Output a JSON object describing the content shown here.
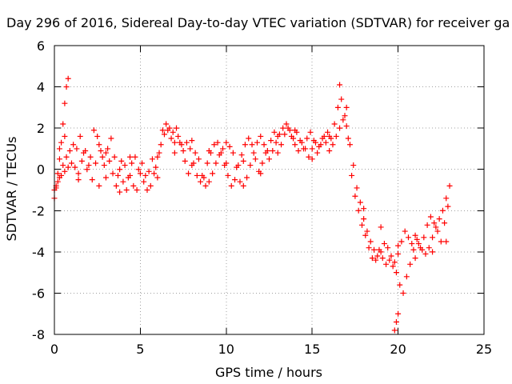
{
  "chart_data": {
    "type": "scatter",
    "title": "Day 296 of 2016, Sidereal Day-to-day VTEC variation (SDTVAR) for receiver ga",
    "xlabel": "GPS time / hours",
    "ylabel": "SDTVAR / TECUs",
    "xlim": [
      0,
      25
    ],
    "ylim": [
      -8,
      6
    ],
    "xticks": [
      "0",
      "5",
      "10",
      "15",
      "20",
      "25"
    ],
    "yticks": [
      "-8",
      "-6",
      "-4",
      "-2",
      "0",
      "2",
      "4",
      "6"
    ],
    "grid": true,
    "marker": "plus",
    "color": "#ff0000",
    "series": [
      {
        "points": [
          [
            0.0,
            -1.4
          ],
          [
            0.1,
            -0.8
          ],
          [
            0.2,
            -0.2
          ],
          [
            0.3,
            0.5
          ],
          [
            0.4,
            1.3
          ],
          [
            0.5,
            2.2
          ],
          [
            0.6,
            3.2
          ],
          [
            0.7,
            4.0
          ],
          [
            0.8,
            4.4
          ],
          [
            0.0,
            -1.0
          ],
          [
            0.2,
            -0.6
          ],
          [
            0.4,
            -0.3
          ],
          [
            0.6,
            -0.1
          ],
          [
            0.8,
            0.1
          ],
          [
            1.0,
            0.3
          ],
          [
            1.2,
            0.1
          ],
          [
            1.4,
            -0.2
          ],
          [
            1.6,
            0.4
          ],
          [
            1.8,
            0.9
          ],
          [
            2.0,
            0.2
          ],
          [
            2.2,
            -0.5
          ],
          [
            2.4,
            0.3
          ],
          [
            2.6,
            1.2
          ],
          [
            2.8,
            0.6
          ],
          [
            3.0,
            -0.4
          ],
          [
            3.2,
            0.4
          ],
          [
            3.4,
            -0.2
          ],
          [
            3.6,
            -0.8
          ],
          [
            3.8,
            0.0
          ],
          [
            4.0,
            -0.6
          ],
          [
            4.2,
            -1.0
          ],
          [
            4.4,
            -0.3
          ],
          [
            4.6,
            -0.8
          ],
          [
            4.8,
            -1.0
          ],
          [
            5.0,
            -0.2
          ],
          [
            5.2,
            -0.6
          ],
          [
            5.4,
            -1.0
          ],
          [
            5.6,
            -0.8
          ],
          [
            5.8,
            -0.2
          ],
          [
            6.0,
            0.6
          ],
          [
            6.2,
            1.2
          ],
          [
            6.4,
            1.7
          ],
          [
            6.6,
            1.9
          ],
          [
            6.8,
            1.5
          ],
          [
            7.0,
            1.3
          ],
          [
            7.2,
            1.6
          ],
          [
            7.4,
            1.2
          ],
          [
            7.6,
            0.4
          ],
          [
            7.8,
            -0.2
          ],
          [
            8.0,
            0.2
          ],
          [
            8.2,
            0.8
          ],
          [
            8.4,
            0.5
          ],
          [
            8.6,
            -0.3
          ],
          [
            8.8,
            -0.8
          ],
          [
            9.0,
            -0.6
          ],
          [
            9.2,
            -0.2
          ],
          [
            9.4,
            0.3
          ],
          [
            9.6,
            0.7
          ],
          [
            9.8,
            1.0
          ],
          [
            10.0,
            1.3
          ],
          [
            10.2,
            1.1
          ],
          [
            10.4,
            0.8
          ],
          [
            10.6,
            0.1
          ],
          [
            10.8,
            -0.6
          ],
          [
            11.0,
            -0.8
          ],
          [
            11.2,
            -0.4
          ],
          [
            11.4,
            0.2
          ],
          [
            11.6,
            0.8
          ],
          [
            11.8,
            1.3
          ],
          [
            12.0,
            1.6
          ],
          [
            12.2,
            1.2
          ],
          [
            12.4,
            0.9
          ],
          [
            12.6,
            1.4
          ],
          [
            12.8,
            1.8
          ],
          [
            13.0,
            1.6
          ],
          [
            13.2,
            1.2
          ],
          [
            13.4,
            1.7
          ],
          [
            13.6,
            2.0
          ],
          [
            13.8,
            1.6
          ],
          [
            14.0,
            1.2
          ],
          [
            14.2,
            0.9
          ],
          [
            14.4,
            1.3
          ],
          [
            14.6,
            1.0
          ],
          [
            14.8,
            0.6
          ],
          [
            15.0,
            1.0
          ],
          [
            15.2,
            1.3
          ],
          [
            15.4,
            1.1
          ],
          [
            15.6,
            1.5
          ],
          [
            15.8,
            1.3
          ],
          [
            16.0,
            0.9
          ],
          [
            16.2,
            1.2
          ],
          [
            16.4,
            1.6
          ],
          [
            16.6,
            2.0
          ],
          [
            16.8,
            2.4
          ],
          [
            17.0,
            2.1
          ],
          [
            17.2,
            1.2
          ],
          [
            17.4,
            0.2
          ],
          [
            17.6,
            -0.9
          ],
          [
            17.8,
            -1.6
          ],
          [
            18.0,
            -2.4
          ],
          [
            18.2,
            -3.0
          ],
          [
            18.4,
            -3.5
          ],
          [
            18.6,
            -3.9
          ],
          [
            18.8,
            -4.2
          ],
          [
            19.0,
            -4.0
          ],
          [
            19.2,
            -3.6
          ],
          [
            19.4,
            -3.8
          ],
          [
            19.6,
            -4.2
          ],
          [
            19.8,
            -4.5
          ],
          [
            20.0,
            -4.1
          ],
          [
            20.2,
            -3.5
          ],
          [
            20.4,
            -3.0
          ],
          [
            20.6,
            -3.3
          ],
          [
            20.8,
            -3.6
          ],
          [
            21.0,
            -3.2
          ],
          [
            21.2,
            -3.6
          ],
          [
            21.4,
            -3.9
          ],
          [
            21.6,
            -4.1
          ],
          [
            21.8,
            -3.8
          ],
          [
            22.0,
            -3.3
          ],
          [
            22.2,
            -2.8
          ],
          [
            22.4,
            -2.4
          ],
          [
            22.6,
            -2.0
          ],
          [
            22.8,
            -1.4
          ],
          [
            23.0,
            -0.8
          ],
          [
            0.1,
            -0.9
          ],
          [
            0.3,
            -0.4
          ],
          [
            0.5,
            0.2
          ],
          [
            0.7,
            0.6
          ],
          [
            0.9,
            0.9
          ],
          [
            1.1,
            1.2
          ],
          [
            1.3,
            1.0
          ],
          [
            1.5,
            1.6
          ],
          [
            1.7,
            0.8
          ],
          [
            1.9,
            0.0
          ],
          [
            2.1,
            0.6
          ],
          [
            2.3,
            1.9
          ],
          [
            2.5,
            1.6
          ],
          [
            2.7,
            0.9
          ],
          [
            2.9,
            0.2
          ],
          [
            3.1,
            1.0
          ],
          [
            3.3,
            1.5
          ],
          [
            3.5,
            0.6
          ],
          [
            3.7,
            -0.3
          ],
          [
            3.9,
            0.4
          ],
          [
            4.1,
            0.2
          ],
          [
            4.3,
            -0.4
          ],
          [
            4.5,
            0.3
          ],
          [
            4.7,
            0.6
          ],
          [
            4.9,
            0.0
          ],
          [
            5.1,
            0.3
          ],
          [
            5.3,
            -0.3
          ],
          [
            5.5,
            -0.1
          ],
          [
            5.7,
            0.5
          ],
          [
            5.9,
            0.1
          ],
          [
            6.1,
            0.8
          ],
          [
            6.3,
            1.9
          ],
          [
            6.5,
            2.2
          ],
          [
            6.7,
            2.0
          ],
          [
            6.9,
            1.8
          ],
          [
            7.1,
            2.0
          ],
          [
            7.3,
            1.3
          ],
          [
            7.5,
            0.9
          ],
          [
            7.7,
            1.3
          ],
          [
            7.9,
            1.0
          ],
          [
            8.1,
            0.3
          ],
          [
            8.3,
            -0.3
          ],
          [
            8.5,
            -0.6
          ],
          [
            8.7,
            -0.4
          ],
          [
            8.9,
            0.3
          ],
          [
            9.1,
            0.8
          ],
          [
            9.3,
            1.2
          ],
          [
            9.5,
            1.3
          ],
          [
            9.7,
            0.8
          ],
          [
            9.9,
            0.2
          ],
          [
            10.1,
            -0.3
          ],
          [
            10.3,
            -0.8
          ],
          [
            10.5,
            -0.5
          ],
          [
            10.7,
            0.2
          ],
          [
            10.9,
            0.7
          ],
          [
            11.1,
            1.2
          ],
          [
            11.3,
            1.5
          ],
          [
            11.5,
            1.2
          ],
          [
            11.7,
            0.5
          ],
          [
            11.9,
            -0.1
          ],
          [
            12.1,
            0.3
          ],
          [
            12.3,
            0.8
          ],
          [
            12.5,
            0.5
          ],
          [
            12.7,
            0.9
          ],
          [
            12.9,
            1.3
          ],
          [
            13.1,
            1.7
          ],
          [
            13.3,
            2.0
          ],
          [
            13.5,
            2.2
          ],
          [
            13.7,
            1.9
          ],
          [
            13.9,
            1.5
          ],
          [
            14.1,
            1.8
          ],
          [
            14.3,
            1.4
          ],
          [
            14.5,
            1.0
          ],
          [
            14.7,
            1.5
          ],
          [
            14.9,
            1.8
          ],
          [
            15.1,
            1.4
          ],
          [
            15.3,
            0.8
          ],
          [
            15.5,
            1.2
          ],
          [
            15.7,
            1.6
          ],
          [
            15.9,
            1.8
          ],
          [
            16.1,
            1.5
          ],
          [
            16.3,
            2.2
          ],
          [
            16.5,
            3.0
          ],
          [
            16.6,
            4.1
          ],
          [
            16.7,
            3.4
          ],
          [
            16.9,
            2.6
          ],
          [
            17.1,
            1.5
          ],
          [
            17.3,
            -0.3
          ],
          [
            17.5,
            -1.3
          ],
          [
            17.7,
            -2.0
          ],
          [
            17.9,
            -2.7
          ],
          [
            18.1,
            -3.2
          ],
          [
            18.3,
            -3.8
          ],
          [
            18.5,
            -4.3
          ],
          [
            18.7,
            -4.4
          ],
          [
            18.9,
            -3.9
          ],
          [
            19.1,
            -4.3
          ],
          [
            19.3,
            -4.6
          ],
          [
            19.5,
            -4.4
          ],
          [
            19.7,
            -4.7
          ],
          [
            19.9,
            -5.0
          ],
          [
            20.1,
            -5.6
          ],
          [
            20.3,
            -6.0
          ],
          [
            20.5,
            -5.2
          ],
          [
            20.7,
            -4.6
          ],
          [
            20.9,
            -3.9
          ],
          [
            21.1,
            -3.4
          ],
          [
            21.3,
            -3.8
          ],
          [
            21.5,
            -3.3
          ],
          [
            21.7,
            -2.7
          ],
          [
            21.9,
            -2.3
          ],
          [
            22.1,
            -2.6
          ],
          [
            22.3,
            -3.0
          ],
          [
            22.5,
            -3.5
          ],
          [
            22.7,
            -2.6
          ],
          [
            22.9,
            -1.8
          ],
          [
            20.0,
            -7.0
          ],
          [
            19.9,
            -7.4
          ],
          [
            19.8,
            -7.8
          ],
          [
            0.3,
            1.0
          ],
          [
            0.6,
            1.6
          ],
          [
            1.4,
            -0.5
          ],
          [
            2.6,
            -0.8
          ],
          [
            3.0,
            0.8
          ],
          [
            3.8,
            -1.1
          ],
          [
            4.4,
            0.6
          ],
          [
            6.0,
            -0.4
          ],
          [
            7.0,
            0.8
          ],
          [
            8.0,
            1.4
          ],
          [
            9.0,
            0.9
          ],
          [
            10.0,
            0.3
          ],
          [
            11.0,
            0.4
          ],
          [
            12.0,
            -0.2
          ],
          [
            13.0,
            0.8
          ],
          [
            14.0,
            1.9
          ],
          [
            15.0,
            0.5
          ],
          [
            16.0,
            1.6
          ],
          [
            17.0,
            3.0
          ],
          [
            18.0,
            -1.9
          ],
          [
            19.0,
            -2.8
          ],
          [
            20.0,
            -3.7
          ],
          [
            21.0,
            -4.3
          ],
          [
            22.0,
            -4.0
          ],
          [
            22.8,
            -3.5
          ]
        ]
      }
    ]
  }
}
